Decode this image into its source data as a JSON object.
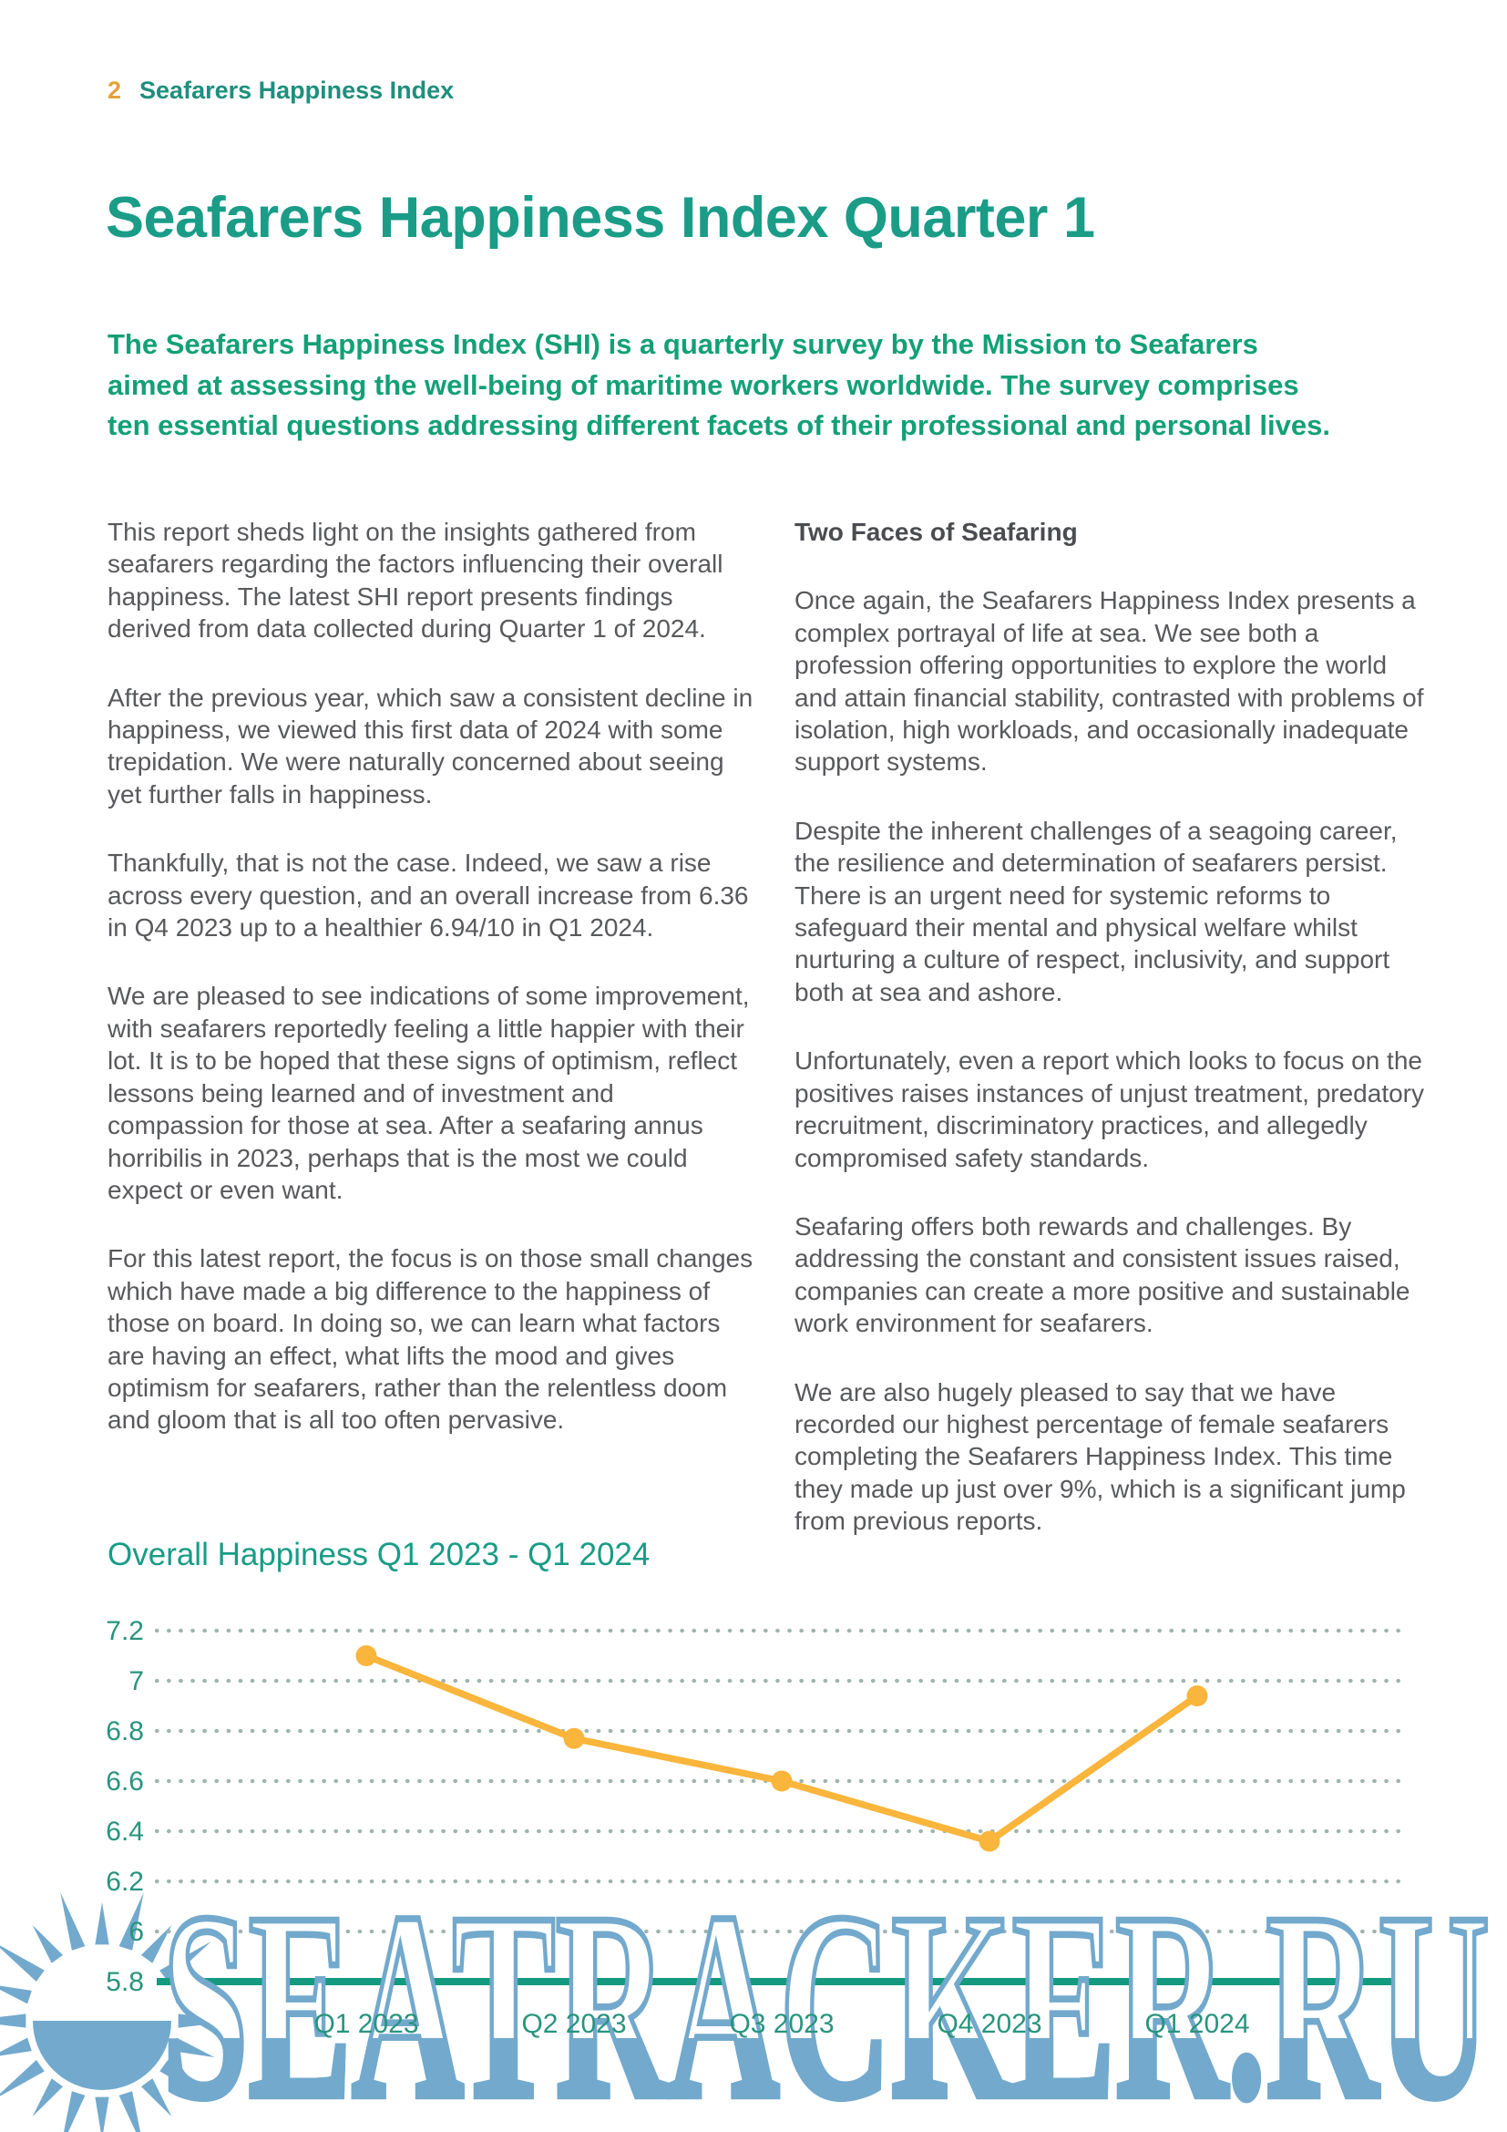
{
  "header": {
    "page_number": "2",
    "title": "Seafarers Happiness Index"
  },
  "main_title": "Seafarers Happiness Index Quarter 1",
  "intro": {
    "lines": [
      "The Seafarers Happiness Index (SHI) is a quarterly survey by the Mission to Seafarers",
      "aimed at assessing the well-being of maritime workers worldwide. The survey comprises",
      "ten essential questions addressing different facets of their professional and personal lives."
    ]
  },
  "left_column": {
    "paragraphs": [
      "This report sheds light on the insights gathered from seafarers regarding the factors influencing their overall happiness. The latest SHI report presents findings derived from data collected during Quarter 1 of 2024.",
      "After the previous year, which saw a consistent decline in happiness, we viewed this first data of 2024 with some trepidation. We were naturally concerned about seeing yet further falls in happiness.",
      "Thankfully, that is not the case. Indeed, we saw a rise across every question, and an overall increase from 6.36 in Q4 2023 up to a healthier 6.94/10 in Q1 2024.",
      "We are pleased to see indications of some improvement, with seafarers reportedly feeling a little happier with their lot. It is to be hoped that these signs of optimism, reflect lessons being learned and of investment and compassion for those at sea. After a seafaring annus horribilis in 2023, perhaps that is the most we could expect or even want.",
      "For this latest report, the focus is on those small changes which have made a big difference to the happiness of those on board. In doing so, we can learn what factors are having an effect, what lifts the mood and gives optimism for seafarers, rather than the relentless doom and gloom that is all too often pervasive."
    ]
  },
  "right_column": {
    "heading": "Two Faces of Seafaring",
    "paragraphs": [
      "Once again, the Seafarers Happiness Index presents a complex portrayal of life at sea. We see both a profession offering opportunities to explore the world and attain financial stability, contrasted with problems of isolation, high workloads, and occasionally inadequate support systems.",
      "Despite the inherent challenges of a seagoing career, the resilience and determination of seafarers persist. There is an urgent need for systemic reforms to safeguard their mental and physical welfare whilst nurturing a culture of respect, inclusivity, and support both at sea and ashore.",
      "Unfortunately, even a report which looks to focus on the positives raises instances of unjust treatment, predatory recruitment, discriminatory practices, and allegedly compromised safety standards.",
      "Seafaring offers both rewards and challenges. By addressing the constant and consistent issues raised, companies can create a more positive and sustainable work environment for seafarers.",
      "We are also hugely pleased to say that we have recorded our highest percentage of female seafarers completing the Seafarers Happiness Index. This time they made up just over 9%, which is a significant jump from previous reports."
    ]
  },
  "chart_data": {
    "type": "line",
    "title": "Overall Happiness Q1 2023 - Q1 2024",
    "categories": [
      "Q1 2023",
      "Q2 2023",
      "Q3 2023",
      "Q4 2023",
      "Q1 2024"
    ],
    "values": [
      7.1,
      6.77,
      6.6,
      6.36,
      6.94
    ],
    "yticks": [
      7.2,
      7,
      6.8,
      6.6,
      6.4,
      6.2,
      6,
      5.8
    ],
    "ylim": [
      5.8,
      7.2
    ],
    "xlabel": "",
    "ylabel": "",
    "grid": "dotted horizontal gridlines, solid baseline at 5.8",
    "legend": "none",
    "line_color": "#F9B53C",
    "marker_color": "#F9B53C",
    "baseline_color": "#149A7F",
    "gridline_color": "#9FB4B0",
    "tick_label_color": "#28947E"
  },
  "watermark": {
    "text": "SEATRACKER.RU",
    "color": "#72A9CD"
  },
  "colors": {
    "accent_teal": "#1A9C87",
    "intro_green": "#13A077",
    "body_gray": "#58595C",
    "page_number_gold": "#E2A23B"
  }
}
